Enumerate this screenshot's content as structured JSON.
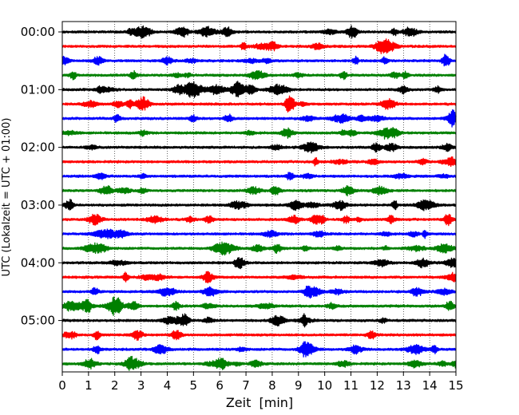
{
  "chart_data": {
    "type": "line",
    "title": "",
    "xlabel": "Zeit  [min]",
    "ylabel": "UTC (Lokalzeit = UTC + 01:00)",
    "xlim": [
      0,
      15
    ],
    "x_ticks": [
      "0",
      "1",
      "2",
      "3",
      "4",
      "5",
      "6",
      "7",
      "8",
      "9",
      "10",
      "11",
      "12",
      "13",
      "14",
      "15"
    ],
    "y_ticks": [
      "00:00",
      "01:00",
      "02:00",
      "03:00",
      "04:00",
      "05:00"
    ],
    "grid": "vertical dotted lines at each minute",
    "trace_interval_minutes": 15,
    "trace_start_times_utc": [
      "00:00",
      "00:15",
      "00:30",
      "00:45",
      "01:00",
      "01:15",
      "01:30",
      "01:45",
      "02:00",
      "02:15",
      "02:30",
      "02:45",
      "03:00",
      "03:15",
      "03:30",
      "03:45",
      "04:00",
      "04:15",
      "04:30",
      "04:45",
      "05:00",
      "05:15",
      "05:30",
      "05:45"
    ],
    "trace_colors": [
      "#000000",
      "#ff0000",
      "#0000ff",
      "#008000"
    ]
  }
}
